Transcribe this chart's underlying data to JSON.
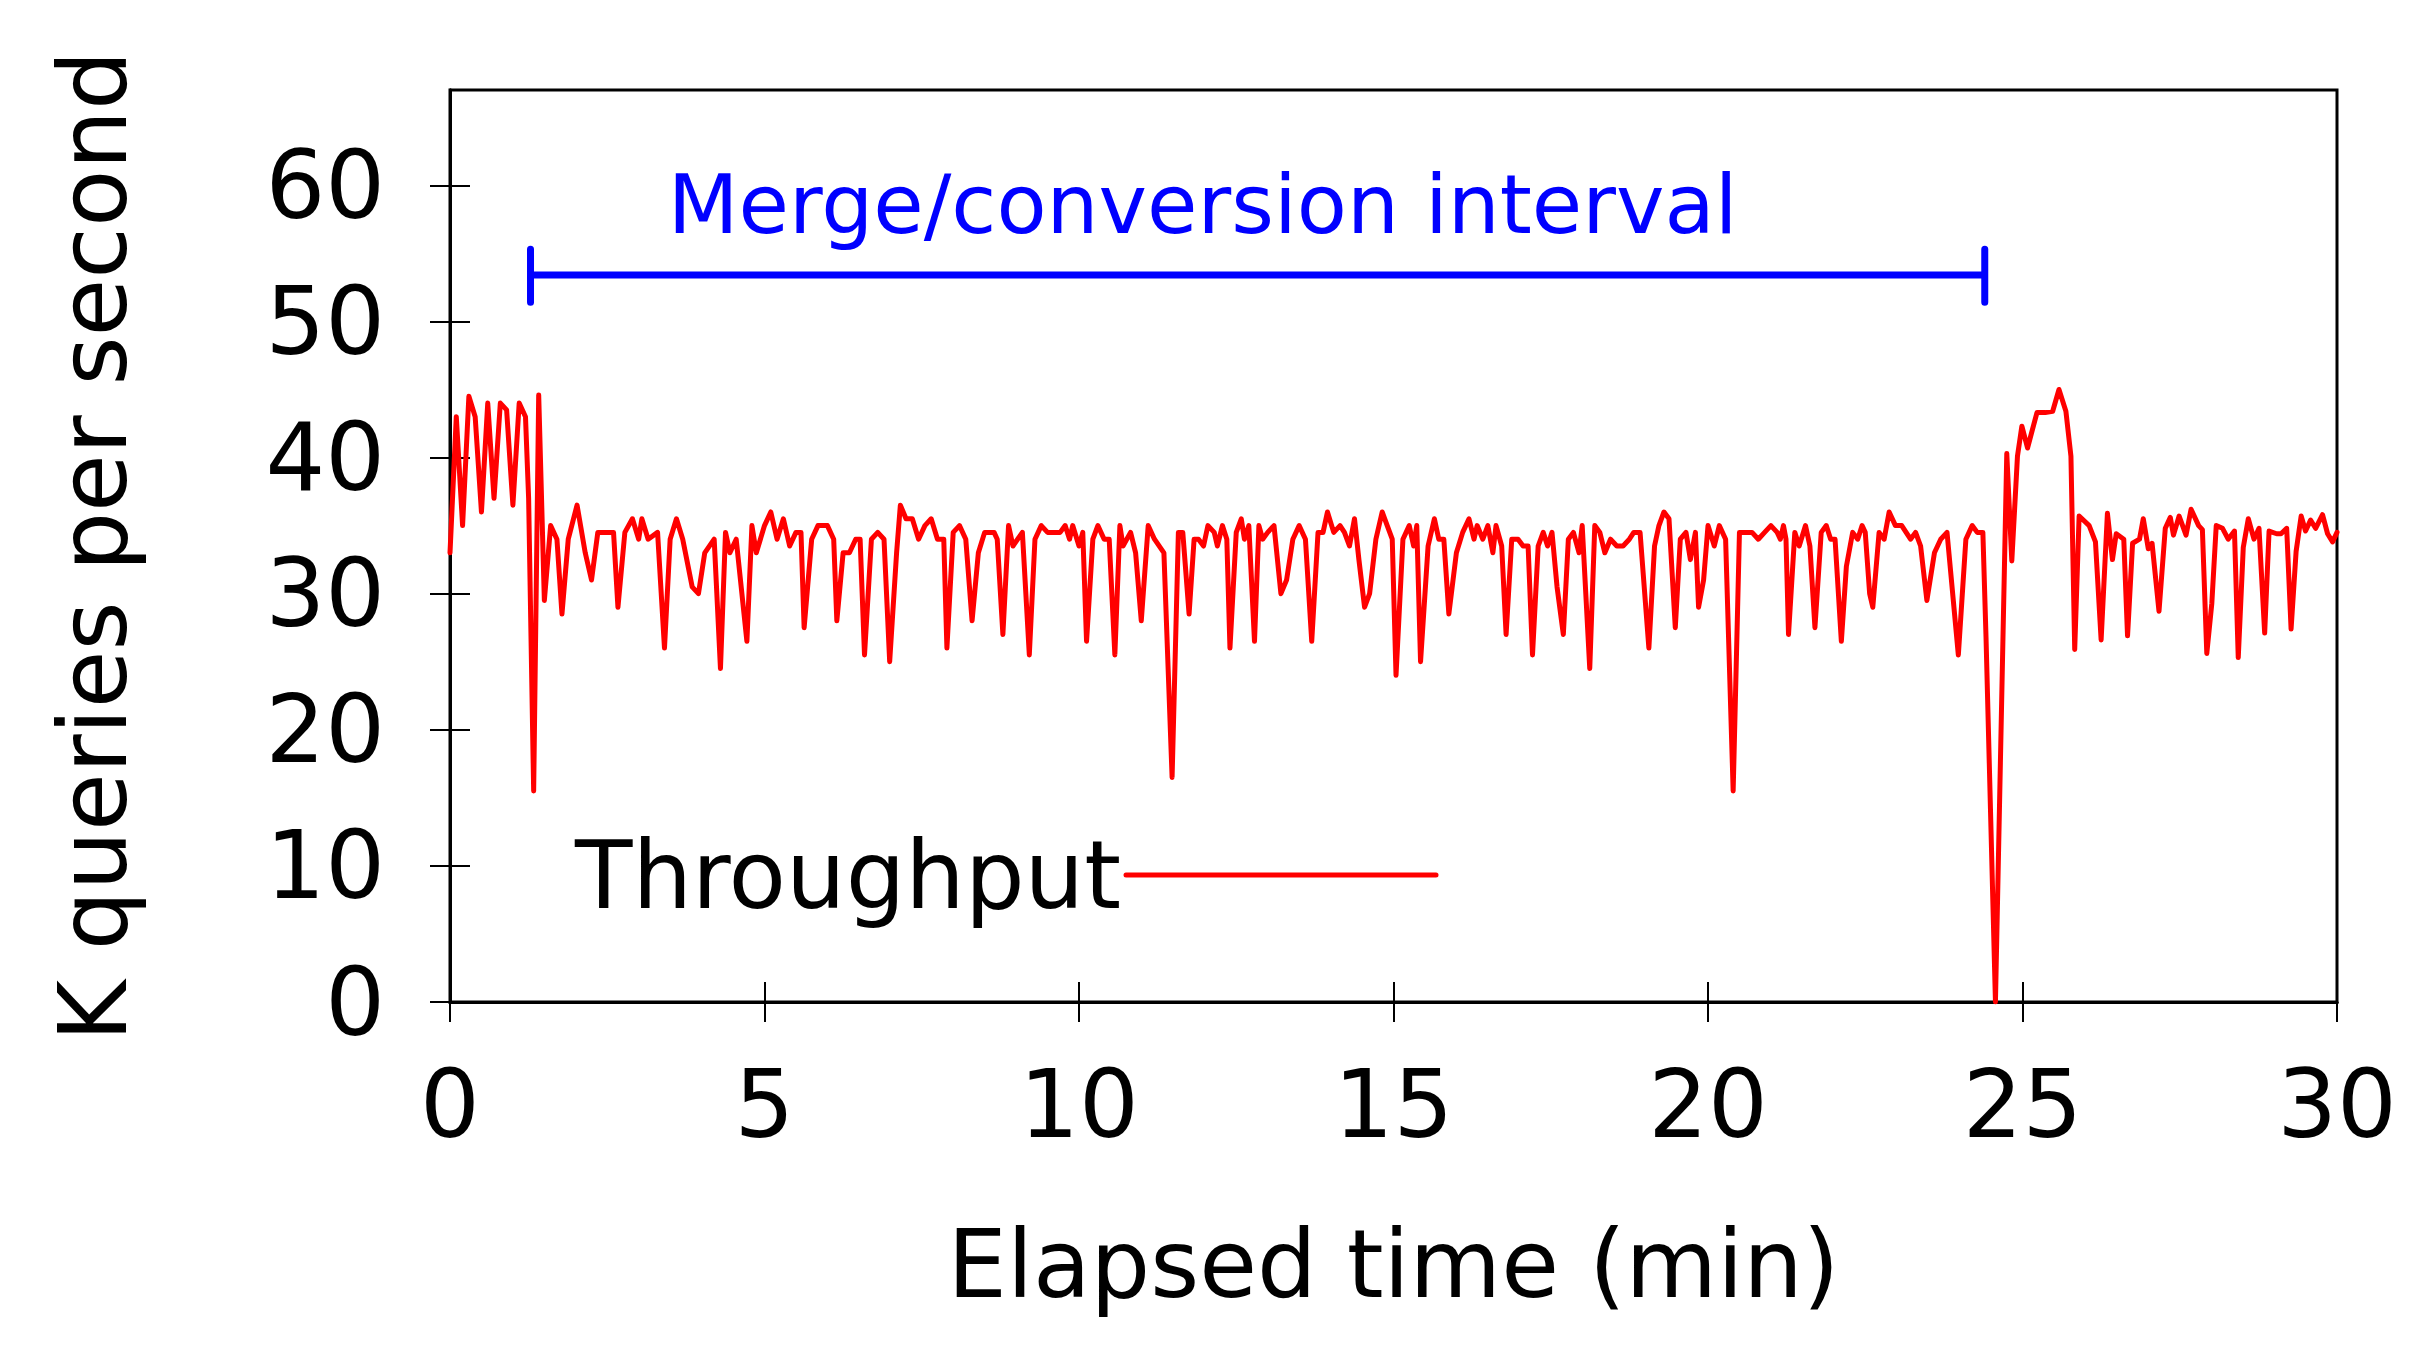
{
  "chart_data": {
    "type": "line",
    "xlabel": "Elapsed time (min)",
    "ylabel": "K queries per second",
    "xlim": [
      0,
      30
    ],
    "xticks": [
      0,
      5,
      10,
      15,
      20,
      25,
      30
    ],
    "ylim": [
      0,
      67
    ],
    "yticks": [
      0,
      10,
      20,
      30,
      40,
      50,
      60
    ],
    "grid": false,
    "legend": "bottom left",
    "marker": "none",
    "line_style": "solid",
    "annotations": [
      {
        "text": "Merge/conversion interval",
        "x": 12.84,
        "y": 53.4
      }
    ],
    "series": [
      {
        "type": "line",
        "color": "#0000ff",
        "x": [
          1.28,
          1.28,
          1.28,
          24.4,
          24.4,
          24.4
        ],
        "values": [
          51.4,
          55.3,
          53.4,
          53.4,
          51.4,
          55.3
        ]
      },
      {
        "name": "Throughput",
        "color": "#ff0000",
        "x": [
          0,
          0.1,
          0.2,
          0.3,
          0.4,
          0.5,
          0.6,
          0.7,
          0.8,
          0.9,
          1.0,
          1.1,
          1.2,
          1.25,
          1.33,
          1.41,
          1.5,
          1.6,
          1.7,
          1.78,
          1.88,
          2.02,
          2.15,
          2.25,
          2.35,
          2.5,
          2.6,
          2.67,
          2.78,
          2.9,
          3.0,
          3.05,
          3.15,
          3.3,
          3.41,
          3.5,
          3.6,
          3.7,
          3.85,
          3.95,
          4.05,
          4.2,
          4.3,
          4.38,
          4.45,
          4.55,
          4.72,
          4.8,
          4.87,
          5.0,
          5.1,
          5.2,
          5.3,
          5.4,
          5.5,
          5.58,
          5.63,
          5.75,
          5.85,
          6.0,
          6.1,
          6.15,
          6.25,
          6.35,
          6.45,
          6.52,
          6.59,
          6.7,
          6.8,
          6.9,
          6.99,
          7.1,
          7.16,
          7.25,
          7.35,
          7.45,
          7.55,
          7.65,
          7.75,
          7.85,
          7.9,
          8.0,
          8.1,
          8.2,
          8.3,
          8.4,
          8.5,
          8.65,
          8.7,
          8.79,
          8.88,
          8.95,
          9.1,
          9.21,
          9.3,
          9.4,
          9.5,
          9.6,
          9.7,
          9.78,
          9.85,
          9.9,
          10.0,
          10.06,
          10.12,
          10.22,
          10.3,
          10.4,
          10.48,
          10.57,
          10.65,
          10.7,
          10.82,
          10.9,
          10.99,
          11.1,
          11.2,
          11.35,
          11.48,
          11.58,
          11.65,
          11.75,
          11.83,
          11.9,
          11.98,
          12.05,
          12.15,
          12.2,
          12.28,
          12.35,
          12.4,
          12.5,
          12.58,
          12.63,
          12.7,
          12.79,
          12.86,
          12.92,
          13.0,
          13.1,
          13.21,
          13.3,
          13.4,
          13.5,
          13.6,
          13.7,
          13.8,
          13.88,
          13.95,
          14.05,
          14.15,
          14.22,
          14.3,
          14.38,
          14.45,
          14.54,
          14.62,
          14.72,
          14.82,
          14.9,
          14.98,
          15.04,
          15.15,
          15.25,
          15.32,
          15.37,
          15.43,
          15.55,
          15.65,
          15.72,
          15.8,
          15.88,
          16.0,
          16.1,
          16.2,
          16.28,
          16.33,
          16.42,
          16.5,
          16.58,
          16.63,
          16.72,
          16.79,
          16.88,
          16.98,
          17.06,
          17.14,
          17.21,
          17.3,
          17.38,
          17.45,
          17.52,
          17.6,
          17.7,
          17.78,
          17.86,
          17.95,
          18.0,
          18.12,
          18.2,
          18.28,
          18.36,
          18.45,
          18.55,
          18.65,
          18.75,
          18.82,
          18.92,
          19.06,
          19.15,
          19.22,
          19.3,
          19.38,
          19.48,
          19.56,
          19.65,
          19.72,
          19.8,
          19.85,
          19.93,
          20.0,
          20.1,
          20.18,
          20.28,
          20.4,
          20.5,
          20.6,
          20.7,
          20.8,
          20.9,
          21.0,
          21.1,
          21.15,
          21.2,
          21.24,
          21.28,
          21.38,
          21.45,
          21.55,
          21.62,
          21.7,
          21.8,
          21.88,
          21.95,
          22.02,
          22.12,
          22.2,
          22.3,
          22.38,
          22.45,
          22.5,
          22.57,
          22.62,
          22.72,
          22.8,
          22.88,
          22.98,
          23.08,
          23.15,
          23.22,
          23.3,
          23.38,
          23.48,
          23.6,
          23.7,
          23.8,
          23.98,
          24.1,
          24.2,
          24.28,
          24.37,
          24.42,
          24.57,
          24.75,
          24.83,
          24.92,
          24.99,
          25.08,
          25.23,
          25.36,
          25.48,
          25.58,
          25.69,
          25.77,
          25.83,
          25.9,
          26.06,
          26.16,
          26.25,
          26.35,
          26.43,
          26.49,
          26.61,
          26.67,
          26.75,
          26.86,
          26.92,
          27.0,
          27.06,
          27.17,
          27.27,
          27.35,
          27.4,
          27.49,
          27.6,
          27.68,
          27.8,
          27.86,
          27.93,
          28.01,
          28.08,
          28.18,
          28.27,
          28.37,
          28.43,
          28.51,
          28.59,
          28.68,
          28.76,
          28.85,
          28.92,
          29.04,
          29.11,
          29.2,
          29.27,
          29.35,
          29.43,
          29.5,
          29.58,
          29.66,
          29.77,
          29.85,
          29.93,
          30.0
        ],
        "values": [
          33,
          43,
          35,
          44.5,
          43,
          36,
          44,
          37,
          44,
          43.5,
          36.5,
          44,
          43,
          37,
          15.5,
          44.6,
          29.5,
          35,
          34,
          28.5,
          34,
          36.5,
          33,
          31,
          34.5,
          34.5,
          34.5,
          29,
          34.5,
          35.5,
          34,
          35.5,
          34,
          34.5,
          26,
          34,
          35.5,
          34,
          30.5,
          30,
          33,
          34,
          24.5,
          34.5,
          33,
          34,
          26.5,
          35,
          33,
          35,
          36,
          34,
          35.5,
          33.5,
          34.5,
          34.5,
          27.5,
          34,
          35,
          35,
          34,
          28,
          33,
          33,
          34,
          34,
          25.5,
          34,
          34.5,
          34,
          25,
          33,
          36.5,
          35.5,
          35.5,
          34,
          35,
          35.5,
          34,
          34,
          26,
          34.5,
          35,
          34,
          28,
          33,
          34.5,
          34.5,
          34,
          27,
          35,
          33.5,
          34.5,
          25.5,
          34,
          35,
          34.5,
          34.5,
          34.5,
          35,
          34,
          35,
          33.5,
          34.5,
          26.5,
          34,
          35,
          34,
          34,
          25.5,
          35,
          33.5,
          34.5,
          33,
          28,
          35,
          34,
          33,
          16.5,
          34.5,
          34.5,
          28.5,
          34,
          34,
          33.5,
          35,
          34.5,
          33.5,
          35,
          34,
          26,
          34.5,
          35.5,
          34,
          35,
          26.5,
          35,
          34,
          34.5,
          35,
          30,
          31,
          34,
          35,
          34,
          26.5,
          34.5,
          34.5,
          36,
          34.5,
          35,
          34.5,
          33.5,
          35.5,
          32.5,
          29,
          30,
          34,
          36,
          35,
          34,
          24,
          34,
          35,
          33.5,
          35,
          25,
          33.5,
          35.5,
          34,
          34,
          28.5,
          33,
          34.5,
          35.5,
          34,
          35,
          34,
          35,
          33,
          35,
          33.5,
          27,
          34,
          34,
          33.5,
          33.5,
          25.5,
          33.5,
          34.5,
          33.5,
          34.5,
          30.5,
          27,
          34,
          34.5,
          33,
          35,
          24.5,
          35,
          34.5,
          33,
          34,
          33.5,
          33.5,
          34,
          34.5,
          34.5,
          26,
          33.5,
          35,
          36,
          35.5,
          27.5,
          34,
          34.5,
          32.5,
          34.5,
          29,
          31,
          35,
          33.5,
          35,
          34,
          15.5,
          34.5,
          34.5,
          34.5,
          34,
          34.5,
          35,
          34.5,
          34,
          35,
          34,
          27,
          34.5,
          33.5,
          35,
          33.5,
          27.5,
          34.5,
          35,
          34,
          34,
          26.5,
          32,
          34.5,
          34,
          35,
          34.5,
          30,
          29,
          34.5,
          34,
          36,
          35,
          35,
          34.5,
          34,
          34.5,
          33.5,
          29.5,
          33,
          34,
          34.5,
          25.5,
          34,
          35,
          34.5,
          34.5,
          26.8,
          0,
          40.3,
          32.4,
          40.1,
          42.3,
          40.7,
          43.3,
          43.3,
          43.4,
          45,
          43.4,
          40.1,
          25.9,
          35.7,
          35,
          33.8,
          26.6,
          35.9,
          32.5,
          34.4,
          34,
          26.9,
          33.7,
          34,
          35.5,
          33.3,
          33.7,
          28.7,
          34.8,
          35.6,
          34.3,
          35.7,
          34.3,
          36.2,
          35,
          34.7,
          25.6,
          29.3,
          35,
          34.8,
          34,
          34.6,
          25.3,
          33.4,
          35.5,
          34,
          34.8,
          27.1,
          34.6,
          34.4,
          34.4,
          34.8,
          27.4,
          33.1,
          35.7,
          34.6,
          35.4,
          34.8,
          35.8,
          34.4,
          33.8,
          34.5
        ]
      }
    ]
  }
}
